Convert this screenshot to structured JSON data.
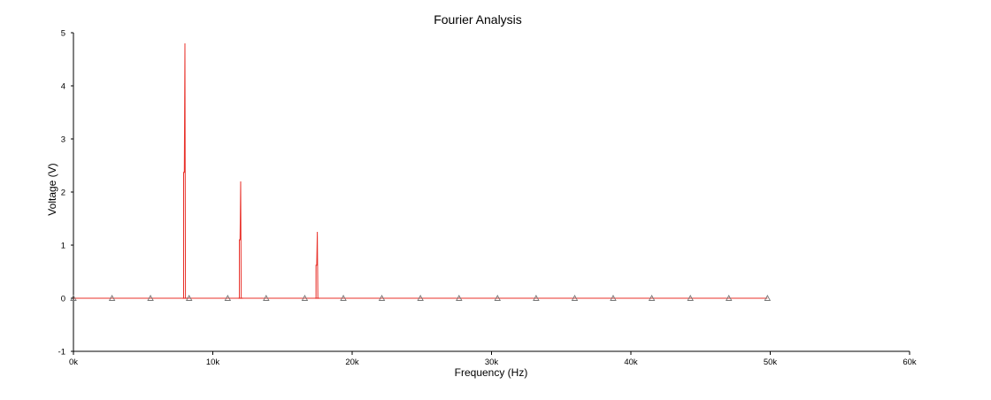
{
  "chart_data": {
    "type": "line",
    "title": "Fourier Analysis",
    "xlabel": "Frequency (Hz)",
    "ylabel": "Voltage (V)",
    "xlim": [
      0,
      60000
    ],
    "ylim": [
      -1,
      5
    ],
    "x_ticks": [
      {
        "value": 0,
        "label": "0k"
      },
      {
        "value": 10000,
        "label": "10k"
      },
      {
        "value": 20000,
        "label": "20k"
      },
      {
        "value": 30000,
        "label": "30k"
      },
      {
        "value": 40000,
        "label": "40k"
      },
      {
        "value": 50000,
        "label": "50k"
      },
      {
        "value": 60000,
        "label": "60k"
      }
    ],
    "y_ticks": [
      {
        "value": -1,
        "label": "-1"
      },
      {
        "value": 0,
        "label": "0"
      },
      {
        "value": 1,
        "label": "1"
      },
      {
        "value": 2,
        "label": "2"
      },
      {
        "value": 3,
        "label": "3"
      },
      {
        "value": 4,
        "label": "4"
      },
      {
        "value": 5,
        "label": "5"
      }
    ],
    "grid": false,
    "series": [
      {
        "color": "#e8312a",
        "marker_color": "#777777",
        "x_range": [
          0,
          49800
        ],
        "peaks": [
          {
            "x": 8000,
            "y": 4.8
          },
          {
            "x": 12000,
            "y": 2.2
          },
          {
            "x": 17500,
            "y": 1.25
          }
        ],
        "peak_inner_values": [
          2.37,
          1.1,
          0.62
        ],
        "marker_x": [
          0,
          2770,
          5530,
          8300,
          11070,
          13830,
          16600,
          19370,
          22130,
          24900,
          27670,
          30430,
          33200,
          35970,
          38730,
          41500,
          44270,
          47030,
          49800
        ]
      }
    ]
  }
}
